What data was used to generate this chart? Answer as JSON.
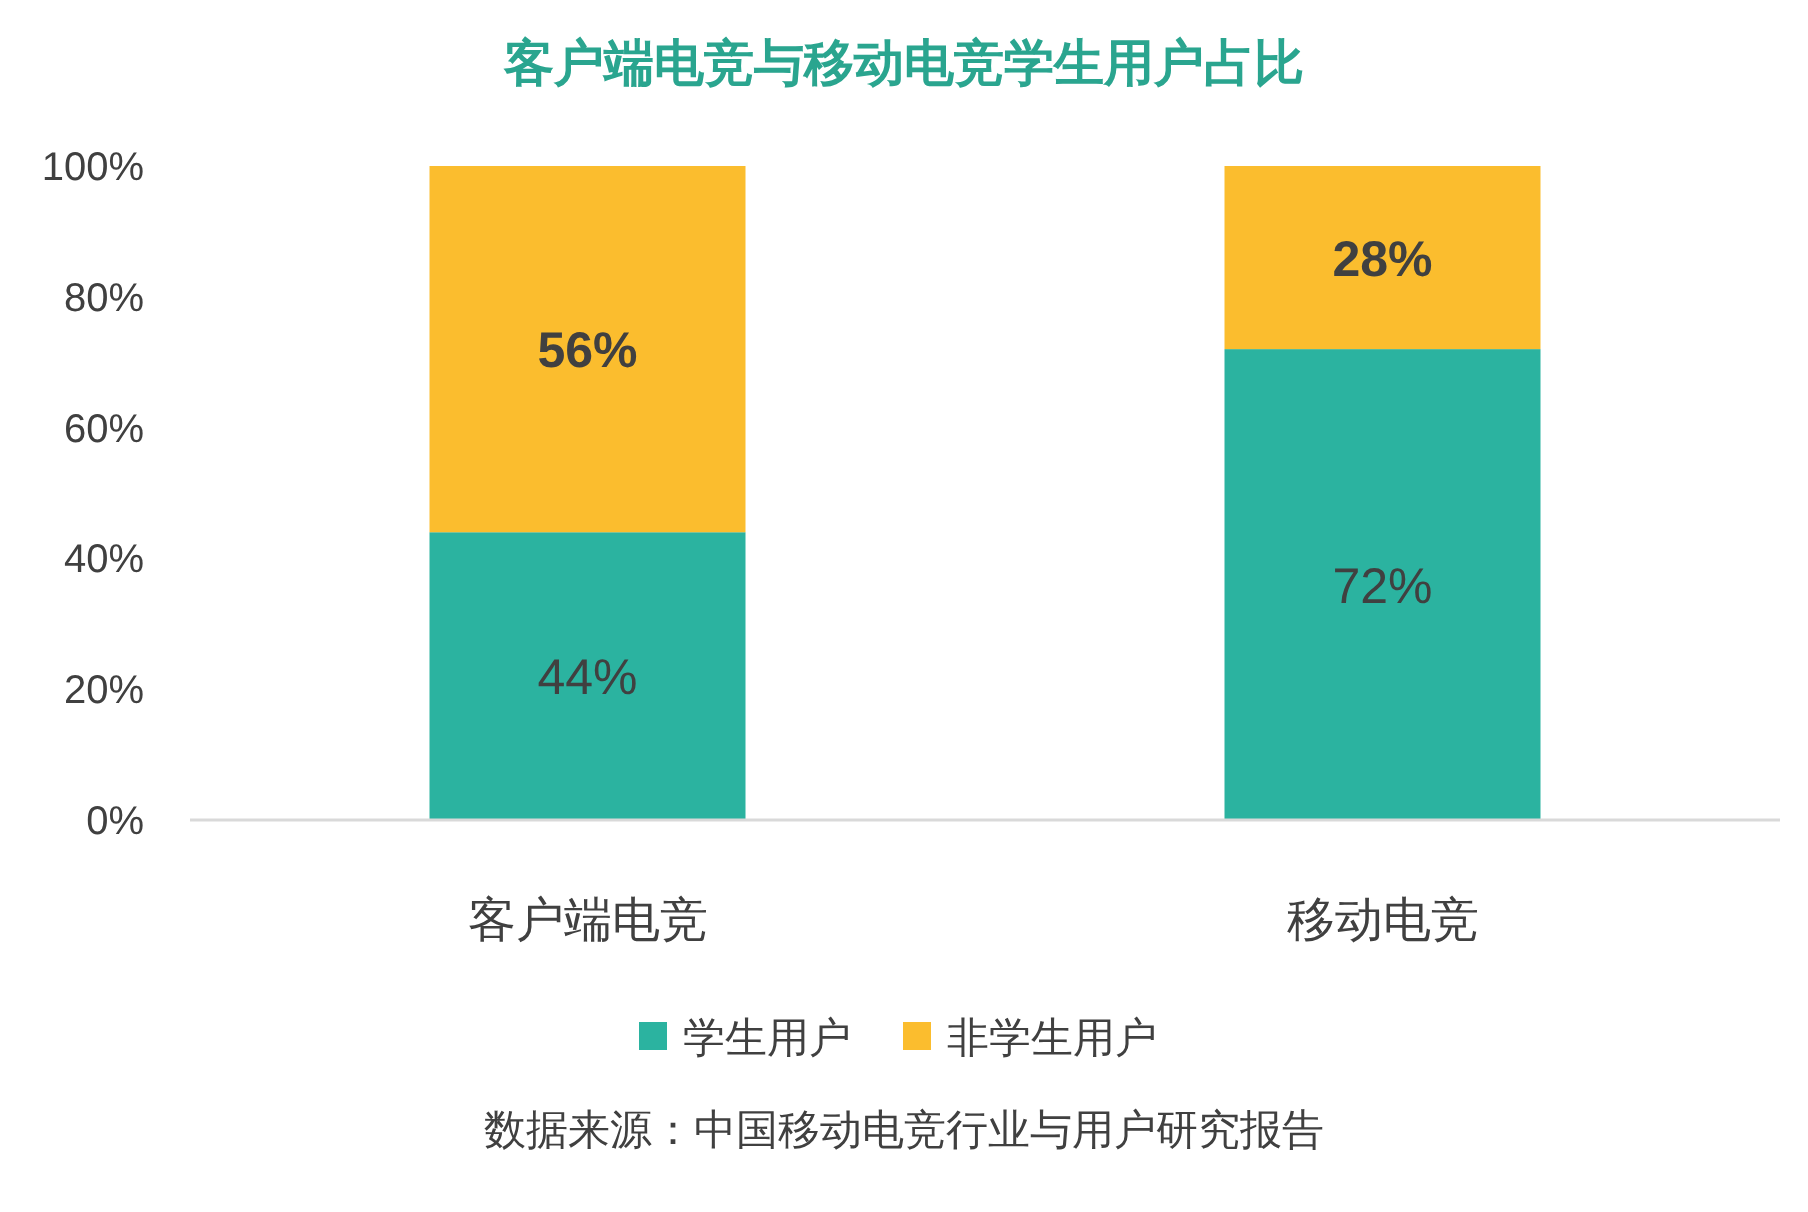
{
  "chart_data": {
    "type": "bar",
    "title": "客户端电竞与移动电竞学生用户占比",
    "categories": [
      "客户端电竞",
      "移动电竞"
    ],
    "stacked": true,
    "series": [
      {
        "name": "学生用户",
        "color": "#2bb3a0",
        "values": [
          44,
          72
        ],
        "value_labels": [
          "44%",
          "72%"
        ]
      },
      {
        "name": "非学生用户",
        "color": "#fbbd2e",
        "values": [
          56,
          28
        ],
        "value_labels": [
          "56%",
          "28%"
        ]
      }
    ],
    "ylim": [
      0,
      100
    ],
    "yticks": [
      {
        "value": 0,
        "label": "0%"
      },
      {
        "value": 20,
        "label": "20%"
      },
      {
        "value": 40,
        "label": "40%"
      },
      {
        "value": 60,
        "label": "60%"
      },
      {
        "value": 80,
        "label": "80%"
      },
      {
        "value": 100,
        "label": "100%"
      }
    ],
    "grid": false,
    "legend": "bottom",
    "annotations": [
      "数据来源：中国移动电竞行业与用户研究报告"
    ]
  }
}
